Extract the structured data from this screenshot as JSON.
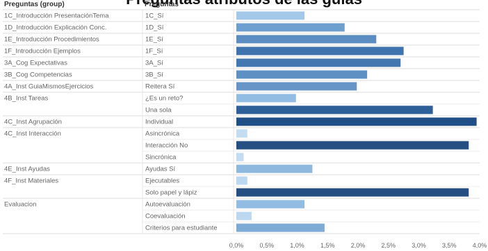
{
  "title": "Preguntas atributos de las guías",
  "headers": {
    "group": "Preguntas (group)",
    "question": "Preguntas"
  },
  "chart_data": {
    "type": "bar",
    "orientation": "horizontal",
    "xlim": [
      0,
      4.0
    ],
    "x_ticks": [
      "0,0%",
      "0,5%",
      "1,0%",
      "1,5%",
      "2,0%",
      "2,5%",
      "3,0%",
      "3,5%",
      "4,0%"
    ],
    "groups": [
      {
        "label": "1C_Introducción PresentaciónTema",
        "rows": [
          {
            "label": "1C_Sí",
            "value": 1.12,
            "color": "#a3c8e8"
          }
        ]
      },
      {
        "label": "1D_Introducción Explicación Conc.",
        "rows": [
          {
            "label": "1D_Sí",
            "value": 1.78,
            "color": "#6f9fcf"
          }
        ]
      },
      {
        "label": "1E_Introducción Procedimientos",
        "rows": [
          {
            "label": "1E_Sí",
            "value": 2.3,
            "color": "#5b8dc2"
          }
        ]
      },
      {
        "label": "1F_Introducción Ejemplos",
        "rows": [
          {
            "label": "1F_Sí",
            "value": 2.75,
            "color": "#3f73ad"
          }
        ]
      },
      {
        "label": "3A_Cog Expectativas",
        "rows": [
          {
            "label": "3A_Sí",
            "value": 2.7,
            "color": "#4277b0"
          }
        ]
      },
      {
        "label": "3B_Cog Competencias",
        "rows": [
          {
            "label": "3B_Sí",
            "value": 2.15,
            "color": "#5f90c4"
          }
        ]
      },
      {
        "label": "4A_Inst GuiaMismosEjercicios",
        "rows": [
          {
            "label": "Reitera Sí",
            "value": 1.98,
            "color": "#6895c8"
          }
        ]
      },
      {
        "label": "4B_Inst Tareas",
        "rows": [
          {
            "label": "¿Es un reto?",
            "value": 0.98,
            "color": "#93bce2"
          },
          {
            "label": "Una sola",
            "value": 3.23,
            "color": "#2d5f98"
          }
        ]
      },
      {
        "label": "4C_Inst Agrupación",
        "rows": [
          {
            "label": "Individual",
            "value": 3.95,
            "color": "#1f4f86"
          }
        ]
      },
      {
        "label": "4C_Inst Interacción",
        "rows": [
          {
            "label": "Asincrónica",
            "value": 0.18,
            "color": "#c3dcf2"
          },
          {
            "label": "Interacción No",
            "value": 3.82,
            "color": "#254f82"
          },
          {
            "label": "Sincrónica",
            "value": 0.12,
            "color": "#c3dcf2"
          }
        ]
      },
      {
        "label": "4E_Inst Ayudas",
        "rows": [
          {
            "label": "Ayudas Sí",
            "value": 1.25,
            "color": "#8fb8de"
          }
        ]
      },
      {
        "label": "4F_Inst Materiales",
        "rows": [
          {
            "label": "Ejecutables",
            "value": 0.18,
            "color": "#bcd7f0"
          },
          {
            "label": "Solo papel y lápiz",
            "value": 3.82,
            "color": "#254f82"
          }
        ]
      },
      {
        "label": "Evaluacion",
        "rows": [
          {
            "label": "Autoevaluación",
            "value": 1.12,
            "color": "#93bce2"
          },
          {
            "label": "Coevaluación",
            "value": 0.25,
            "color": "#bcd7f0"
          },
          {
            "label": "Criterios para estudiante",
            "value": 1.45,
            "color": "#7eaad6"
          }
        ]
      }
    ]
  }
}
